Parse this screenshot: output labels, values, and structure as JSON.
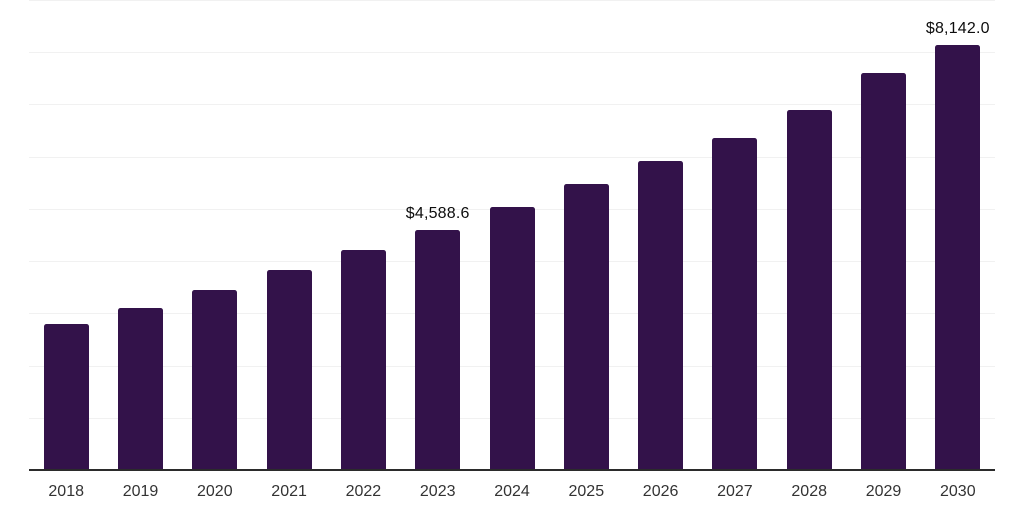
{
  "chart_data": {
    "type": "bar",
    "title": "",
    "xlabel": "",
    "ylabel": "",
    "categories": [
      "2018",
      "2019",
      "2020",
      "2021",
      "2022",
      "2023",
      "2024",
      "2025",
      "2026",
      "2027",
      "2028",
      "2029",
      "2030"
    ],
    "values": [
      2800,
      3100,
      3440,
      3830,
      4210,
      4588.6,
      5030,
      5480,
      5920,
      6360,
      6890,
      7610,
      8142
    ],
    "data_labels": {
      "2023": "$4,588.6",
      "2030": "$8,142.0"
    },
    "ylim": [
      0,
      9000
    ],
    "gridline_step": 1000,
    "grid": "horizontal-only",
    "legend": "none",
    "y_axis_tick_labels_visible": false,
    "currency_prefix": "$"
  },
  "colors": {
    "background": "#ffffff",
    "bar": "#33124A",
    "gridline": "#f1f1f1",
    "axis_line": "#2b2b2b",
    "x_label_text": "#333333",
    "data_label_text": "#0d0d0d"
  }
}
